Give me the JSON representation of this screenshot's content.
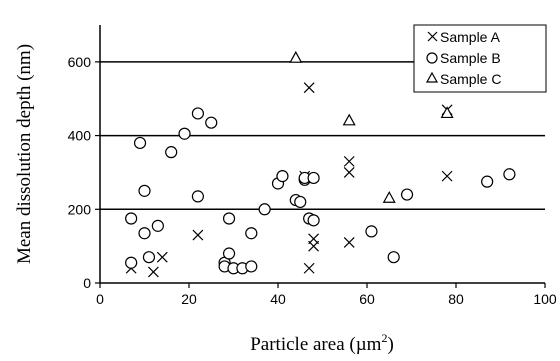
{
  "chart_data": {
    "type": "scatter",
    "xlabel_main": "Particle area (µm",
    "xlabel_sup": "2",
    "xlabel_tail": ")",
    "ylabel": "Mean dissolution depth (nm)",
    "xlim": [
      0,
      100
    ],
    "ylim": [
      0,
      700
    ],
    "x_ticks": [
      0,
      20,
      40,
      60,
      80,
      100
    ],
    "y_ticks": [
      0,
      200,
      400,
      600
    ],
    "x_tick_labels": [
      "0",
      "20",
      "40",
      "60",
      "80",
      "100"
    ],
    "y_tick_labels": [
      "0",
      "200",
      "400",
      "600"
    ],
    "grid_y": [
      200,
      400,
      600
    ],
    "legend": {
      "position": "top-right",
      "entries": [
        "Sample A",
        "Sample B",
        "Sample C"
      ]
    },
    "series": [
      {
        "name": "Sample A",
        "marker": "x",
        "points": [
          [
            7,
            40
          ],
          [
            12,
            30
          ],
          [
            14,
            70
          ],
          [
            22,
            130
          ],
          [
            46,
            290
          ],
          [
            47,
            530
          ],
          [
            47,
            40
          ],
          [
            48,
            100
          ],
          [
            48,
            120
          ],
          [
            56,
            330
          ],
          [
            56,
            300
          ],
          [
            56,
            110
          ],
          [
            78,
            290
          ],
          [
            78,
            470
          ]
        ]
      },
      {
        "name": "Sample B",
        "marker": "circle",
        "points": [
          [
            7,
            175
          ],
          [
            7,
            55
          ],
          [
            9,
            380
          ],
          [
            10,
            250
          ],
          [
            10,
            135
          ],
          [
            11,
            70
          ],
          [
            13,
            155
          ],
          [
            16,
            355
          ],
          [
            19,
            405
          ],
          [
            22,
            460
          ],
          [
            22,
            235
          ],
          [
            25,
            435
          ],
          [
            28,
            55
          ],
          [
            28,
            45
          ],
          [
            29,
            175
          ],
          [
            29,
            80
          ],
          [
            30,
            40
          ],
          [
            32,
            40
          ],
          [
            34,
            45
          ],
          [
            34,
            135
          ],
          [
            37,
            200
          ],
          [
            40,
            270
          ],
          [
            41,
            290
          ],
          [
            44,
            225
          ],
          [
            45,
            220
          ],
          [
            46,
            280
          ],
          [
            46,
            285
          ],
          [
            48,
            285
          ],
          [
            47,
            175
          ],
          [
            48,
            170
          ],
          [
            61,
            140
          ],
          [
            66,
            70
          ],
          [
            69,
            240
          ],
          [
            87,
            275
          ],
          [
            92,
            295
          ]
        ]
      },
      {
        "name": "Sample C",
        "marker": "triangle",
        "points": [
          [
            44,
            610
          ],
          [
            56,
            440
          ],
          [
            65,
            230
          ],
          [
            78,
            460
          ]
        ]
      }
    ]
  }
}
